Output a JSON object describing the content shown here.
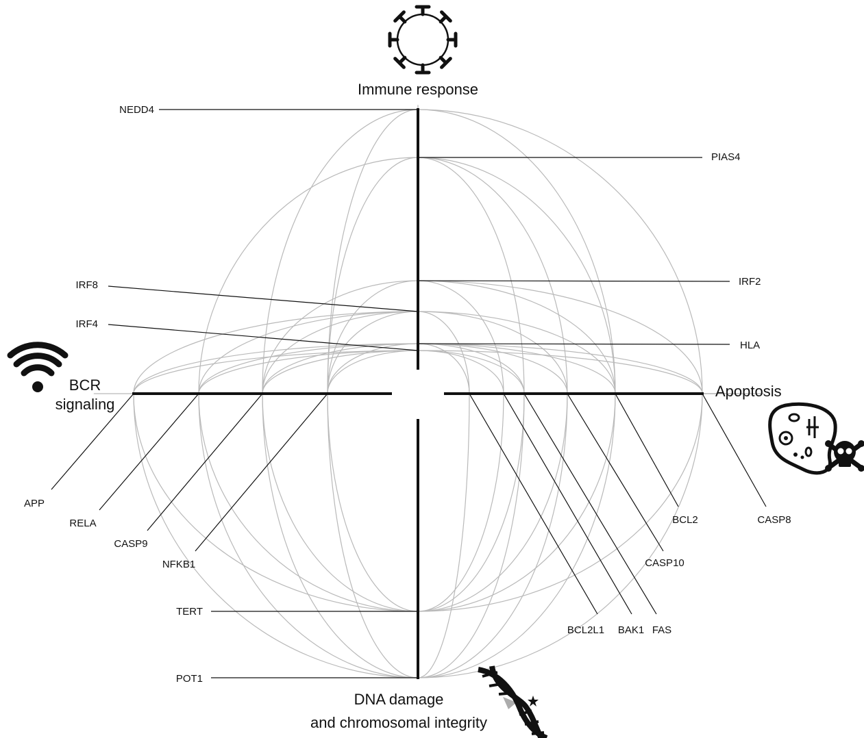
{
  "axes": [
    {
      "id": "immune",
      "title_lines": [
        "Immune response"
      ],
      "icon": "virus-icon"
    },
    {
      "id": "bcr",
      "title_lines": [
        "BCR",
        "signaling"
      ],
      "icon": "wifi-signal-icon"
    },
    {
      "id": "apoptosis",
      "title_lines": [
        "Apoptosis"
      ],
      "icon": "dying-cell-skull-icon"
    },
    {
      "id": "dna",
      "title_lines": [
        "DNA damage",
        "and chromosomal integrity"
      ],
      "icon": "dna-helix-icon"
    }
  ],
  "genes": [
    {
      "id": "NEDD4",
      "label": "NEDD4",
      "axis": "immune"
    },
    {
      "id": "PIAS4",
      "label": "PIAS4",
      "axis": "immune"
    },
    {
      "id": "IRF2",
      "label": "IRF2",
      "axis": "immune"
    },
    {
      "id": "IRF8",
      "label": "IRF8",
      "axis": "immune"
    },
    {
      "id": "IRF4",
      "label": "IRF4",
      "axis": "immune"
    },
    {
      "id": "HLA",
      "label": "HLA",
      "axis": "immune"
    },
    {
      "id": "APP",
      "label": "APP",
      "axis": "bcr"
    },
    {
      "id": "RELA",
      "label": "RELA",
      "axis": "bcr"
    },
    {
      "id": "CASP9",
      "label": "CASP9",
      "axis": "bcr"
    },
    {
      "id": "NFKB1",
      "label": "NFKB1",
      "axis": "bcr"
    },
    {
      "id": "BCL2L1",
      "label": "BCL2L1",
      "axis": "apoptosis"
    },
    {
      "id": "BAK1",
      "label": "BAK1",
      "axis": "apoptosis"
    },
    {
      "id": "FAS",
      "label": "FAS",
      "axis": "apoptosis"
    },
    {
      "id": "CASP10",
      "label": "CASP10",
      "axis": "apoptosis"
    },
    {
      "id": "BCL2",
      "label": "BCL2",
      "axis": "apoptosis"
    },
    {
      "id": "CASP8",
      "label": "CASP8",
      "axis": "apoptosis"
    },
    {
      "id": "TERT",
      "label": "TERT",
      "axis": "dna"
    },
    {
      "id": "POT1",
      "label": "POT1",
      "axis": "dna"
    }
  ],
  "links": [
    [
      "NEDD4",
      "NFKB1"
    ],
    [
      "NEDD4",
      "CASP9"
    ],
    [
      "NEDD4",
      "BCL2"
    ],
    [
      "NEDD4",
      "CASP8"
    ],
    [
      "NEDD4",
      "IRF4"
    ],
    [
      "NEDD4",
      "HLA"
    ],
    [
      "PIAS4",
      "NFKB1"
    ],
    [
      "PIAS4",
      "RELA"
    ],
    [
      "PIAS4",
      "CASP10"
    ],
    [
      "PIAS4",
      "BCL2"
    ],
    [
      "PIAS4",
      "FAS"
    ],
    [
      "PIAS4",
      "IRF8"
    ],
    [
      "PIAS4",
      "HLA"
    ],
    [
      "IRF2",
      "NFKB1"
    ],
    [
      "IRF2",
      "CASP9"
    ],
    [
      "IRF2",
      "CASP8"
    ],
    [
      "IRF2",
      "BCL2"
    ],
    [
      "IRF2",
      "BAK1"
    ],
    [
      "IRF8",
      "NFKB1"
    ],
    [
      "IRF8",
      "CASP9"
    ],
    [
      "IRF8",
      "RELA"
    ],
    [
      "IRF8",
      "APP"
    ],
    [
      "IRF8",
      "BCL2"
    ],
    [
      "IRF8",
      "CASP10"
    ],
    [
      "IRF8",
      "BCL2L1"
    ],
    [
      "IRF4",
      "NFKB1"
    ],
    [
      "IRF4",
      "CASP9"
    ],
    [
      "IRF4",
      "RELA"
    ],
    [
      "IRF4",
      "APP"
    ],
    [
      "IRF4",
      "FAS"
    ],
    [
      "IRF4",
      "CASP8"
    ],
    [
      "IRF4",
      "BAK1"
    ],
    [
      "HLA",
      "NFKB1"
    ],
    [
      "HLA",
      "CASP9"
    ],
    [
      "HLA",
      "RELA"
    ],
    [
      "HLA",
      "APP"
    ],
    [
      "HLA",
      "BCL2"
    ],
    [
      "HLA",
      "CASP8"
    ],
    [
      "HLA",
      "CASP10"
    ],
    [
      "HLA",
      "BCL2L1"
    ],
    [
      "HLA",
      "FAS"
    ],
    [
      "APP",
      "TERT"
    ],
    [
      "APP",
      "POT1"
    ],
    [
      "RELA",
      "TERT"
    ],
    [
      "RELA",
      "POT1"
    ],
    [
      "CASP9",
      "TERT"
    ],
    [
      "CASP9",
      "POT1"
    ],
    [
      "NFKB1",
      "TERT"
    ],
    [
      "NFKB1",
      "POT1"
    ],
    [
      "NFKB1",
      "RELA"
    ],
    [
      "CASP9",
      "APP"
    ],
    [
      "TERT",
      "BCL2"
    ],
    [
      "TERT",
      "CASP8"
    ],
    [
      "TERT",
      "BAK1"
    ],
    [
      "TERT",
      "CASP10"
    ],
    [
      "TERT",
      "FAS"
    ],
    [
      "POT1",
      "BCL2"
    ],
    [
      "POT1",
      "CASP8"
    ],
    [
      "POT1",
      "BCL2L1"
    ],
    [
      "POT1",
      "FAS"
    ],
    [
      "POT1",
      "CASP10"
    ],
    [
      "BCL2L1",
      "CASP8"
    ],
    [
      "BAK1",
      "BCL2"
    ],
    [
      "FAS",
      "CASP8"
    ],
    [
      "CASP10",
      "CASP8"
    ],
    [
      "BCL2",
      "CASP8"
    ],
    [
      "BCL2L1",
      "BCL2"
    ]
  ]
}
